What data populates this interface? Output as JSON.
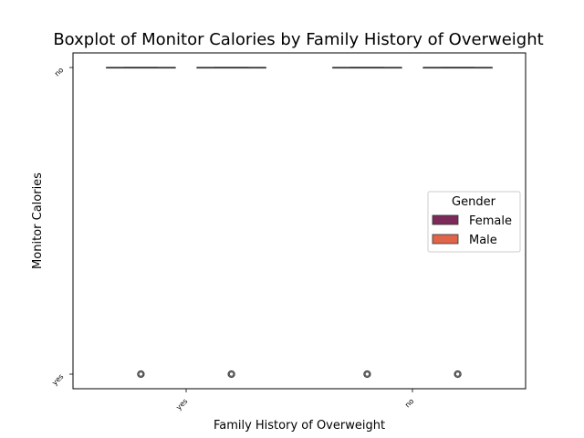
{
  "chart_data": {
    "type": "box",
    "title": "Boxplot of Monitor Calories by Family History of Overweight",
    "xlabel": "Family History of Overweight",
    "ylabel": "Monitor Calories",
    "categories": [
      "yes",
      "no"
    ],
    "y_categories": [
      "no",
      "yes"
    ],
    "legend": {
      "title": "Gender",
      "placement": "center-right",
      "entries": [
        "Female",
        "Male"
      ]
    },
    "series": [
      {
        "name": "Female",
        "color": "#7b2a5a",
        "boxes": [
          {
            "category": "yes",
            "median": "no",
            "q1": "no",
            "q3": "no",
            "whisker_low": "no",
            "whisker_high": "no",
            "outliers": [
              "yes"
            ]
          },
          {
            "category": "no",
            "median": "no",
            "q1": "no",
            "q3": "no",
            "whisker_low": "no",
            "whisker_high": "no",
            "outliers": [
              "yes"
            ]
          }
        ]
      },
      {
        "name": "Male",
        "color": "#e0644a",
        "boxes": [
          {
            "category": "yes",
            "median": "no",
            "q1": "no",
            "q3": "no",
            "whisker_low": "no",
            "whisker_high": "no",
            "outliers": [
              "yes"
            ]
          },
          {
            "category": "no",
            "median": "no",
            "q1": "no",
            "q3": "no",
            "whisker_low": "no",
            "whisker_high": "no",
            "outliers": [
              "yes"
            ]
          }
        ]
      }
    ],
    "grid": false
  }
}
